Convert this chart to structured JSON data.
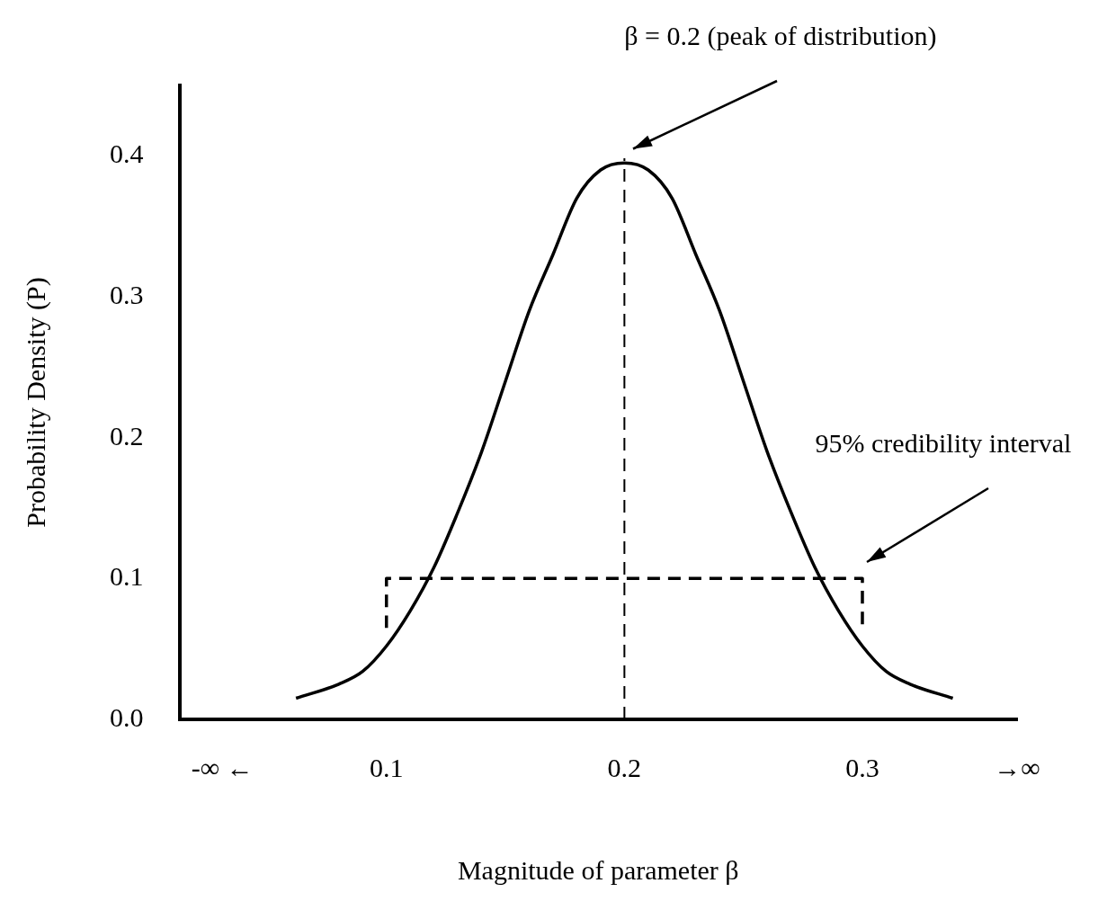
{
  "chart_data": {
    "type": "line",
    "xlabel": "Magnitude of parameter β",
    "ylabel": "Probability Density (P)",
    "xlim": [
      0.013,
      0.365
    ],
    "xticks": [
      {
        "value": 0.031,
        "label": "-∞ ←"
      },
      0.1,
      0.2,
      0.3,
      {
        "value": 0.365,
        "label": "→∞"
      }
    ],
    "ylim": [
      0,
      0.45
    ],
    "yticks": [
      {
        "value": 0,
        "label": "0.0"
      },
      0.1,
      0.2,
      0.3,
      0.4
    ],
    "series": [
      {
        "color": "#000000",
        "x": [
          0.062,
          0.08,
          0.09,
          0.1,
          0.11,
          0.12,
          0.13,
          0.14,
          0.15,
          0.16,
          0.17,
          0.18,
          0.19,
          0.2,
          0.21,
          0.22,
          0.23,
          0.24,
          0.25,
          0.26,
          0.27,
          0.28,
          0.29,
          0.3,
          0.31,
          0.32,
          0.338
        ],
        "values": [
          0.015,
          0.025,
          0.034,
          0.052,
          0.077,
          0.108,
          0.147,
          0.19,
          0.24,
          0.29,
          0.33,
          0.37,
          0.39,
          0.395,
          0.39,
          0.37,
          0.33,
          0.29,
          0.24,
          0.19,
          0.147,
          0.108,
          0.077,
          0.052,
          0.034,
          0.025,
          0.015
        ]
      },
      {
        "color": "#000000",
        "line_style": "dashed",
        "x": [
          0.1,
          0.1,
          0.3,
          0.3
        ],
        "values": [
          0.065,
          0.1,
          0.1,
          0.065
        ]
      }
    ],
    "ref_lines": [
      {
        "axis": "x",
        "value": 0.2,
        "label": "β = 0.2 (peak of distribution)",
        "line_style": "dashed",
        "color": "#000000"
      }
    ],
    "annotations": [
      "95% credibility interval"
    ],
    "grid": false,
    "legend": false,
    "marker": "none",
    "line_style": "solid"
  }
}
